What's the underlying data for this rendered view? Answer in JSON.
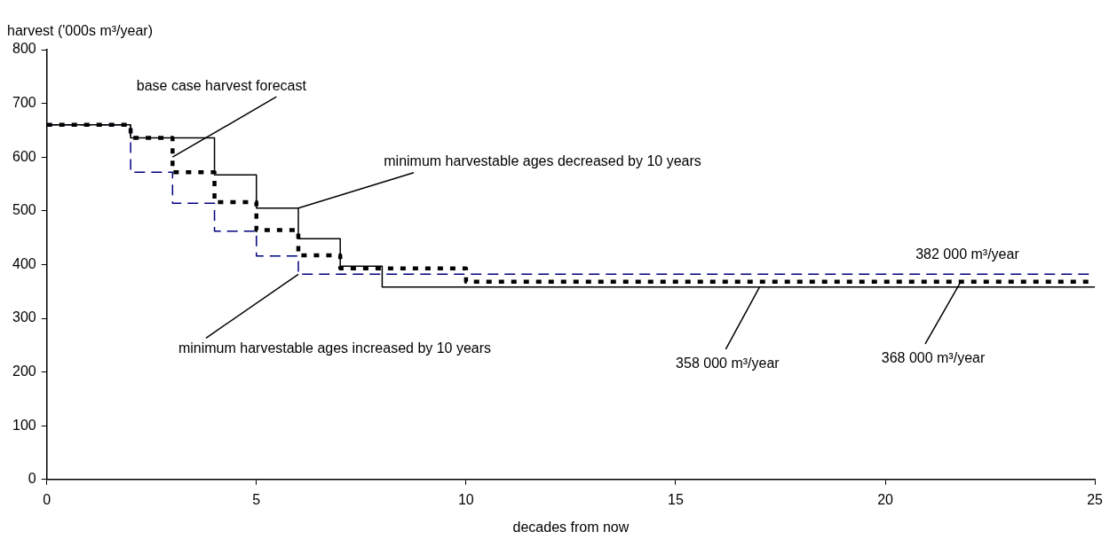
{
  "chart_data": {
    "type": "step",
    "xlabel": "decades from now",
    "ylabel": "harvest ('000s m³/year)",
    "xlim": [
      0,
      25
    ],
    "xticks": [
      0,
      5,
      10,
      15,
      20,
      25
    ],
    "ylim": [
      0,
      800
    ],
    "yticks": [
      0,
      100,
      200,
      300,
      400,
      500,
      600,
      700,
      800
    ],
    "grid": false,
    "legend": false,
    "marker": "none",
    "series": [
      {
        "color": "#000000",
        "line_style": "solid",
        "x": [
          0,
          2,
          4,
          5,
          6,
          7,
          8,
          25
        ],
        "values": [
          660,
          636,
          567,
          505,
          448,
          397,
          358,
          358
        ]
      },
      {
        "color": "#000000",
        "line_style": "dotted",
        "x": [
          0,
          2,
          3,
          4,
          5,
          6,
          7,
          10,
          25
        ],
        "values": [
          660,
          636,
          572,
          516,
          464,
          417,
          393,
          368,
          368
        ]
      },
      {
        "color": "#000080",
        "line_style": "dashed",
        "x": [
          0,
          2,
          3,
          4,
          5,
          6,
          25
        ],
        "values": [
          660,
          572,
          514,
          462,
          416,
          382,
          382
        ]
      }
    ],
    "annotations": [
      {
        "text": "base case harvest forecast",
        "x": 3,
        "y": 600
      },
      {
        "text": "minimum harvestable ages decreased by 10 years",
        "x": 6,
        "y": 505
      },
      {
        "text": "minimum harvestable ages increased by 10 years",
        "x": 6,
        "y": 382
      },
      {
        "text": "382 000 m³/year",
        "x": 22,
        "y": 382
      },
      {
        "text": "358 000 m³/year",
        "x": 17,
        "y": 358
      },
      {
        "text": "368 000 m³/year",
        "x": 21.8,
        "y": 368
      }
    ]
  }
}
